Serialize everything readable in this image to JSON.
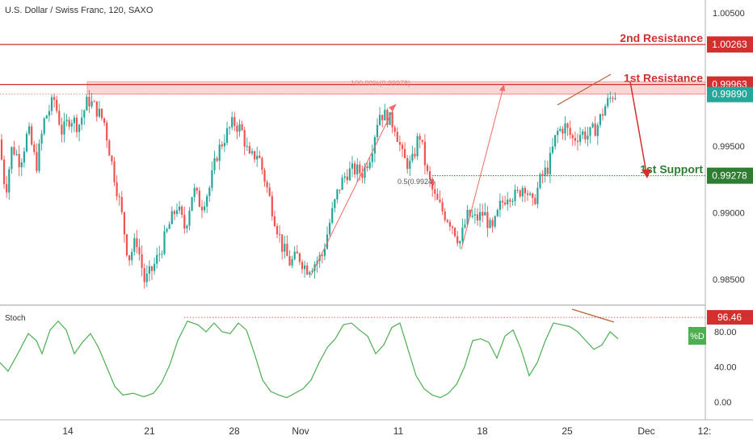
{
  "chart_data": {
    "type": "candlestick",
    "title": "U.S. Dollar / Swiss Franc, 120, SAXO",
    "price_axis": {
      "ylim": [
        0.982,
        1.007
      ],
      "ticks": [
        {
          "value": 1.005,
          "label": "1.00500"
        },
        {
          "value": 0.995,
          "label": "0.99500"
        },
        {
          "value": 0.99,
          "label": "0.99000"
        },
        {
          "value": 0.985,
          "label": "0.98500"
        }
      ]
    },
    "x_axis": {
      "ticks": [
        "14",
        "21",
        "28",
        "Nov",
        "11",
        "18",
        "25",
        "Dec",
        "12:"
      ]
    },
    "levels": [
      {
        "name": "2nd Resistance",
        "label": "1.00263",
        "value": 1.00263,
        "color": "#d32f2f"
      },
      {
        "name": "1st Resistance",
        "label": "0.99963",
        "value": 0.99963,
        "color": "#d32f2f"
      },
      {
        "name": "1st Support",
        "label": "0.99278",
        "value": 0.99278,
        "color": "#2e7d32"
      }
    ],
    "last_price": {
      "label": "0.99890",
      "value": 0.9989,
      "color": "#26a69a"
    },
    "fib_labels": [
      {
        "text": "100.00%(0.99978)",
        "value": 0.99978
      },
      {
        "text": "0.5(0.9924)",
        "value": 0.9924
      }
    ],
    "stoch": {
      "label": "Stoch",
      "ylim": [
        -5,
        110
      ],
      "ticks": [
        {
          "value": 80,
          "label": "80.00"
        },
        {
          "value": 40,
          "label": "40.00"
        },
        {
          "value": 0,
          "label": "0.00"
        }
      ],
      "level": {
        "label": "96.46",
        "value": 96.46
      },
      "badge": "%D"
    }
  },
  "colors": {
    "up": "#26a69a",
    "down": "#ef5350",
    "resistance": "#d32f2f",
    "support": "#2e7d32",
    "zone": "#f4b6b3",
    "annotation": "#ef6b66",
    "trend": "#b5653a",
    "stoch_line": "#4caf50"
  }
}
